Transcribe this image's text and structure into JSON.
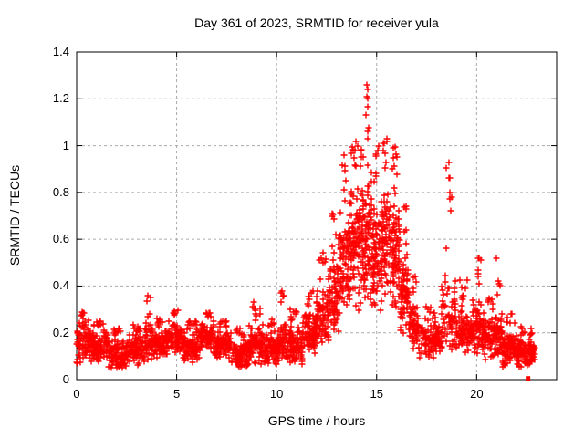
{
  "chart_data": {
    "type": "scatter",
    "title": "Day 361 of 2023, SRMTID for receiver yula",
    "xlabel": "GPS time / hours",
    "ylabel": "SRMTID / TECUs",
    "xlim": [
      0,
      24
    ],
    "ylim": [
      0,
      1.4
    ],
    "xticks": [
      {
        "v": 0,
        "label": "0"
      },
      {
        "v": 5,
        "label": "5"
      },
      {
        "v": 10,
        "label": "10"
      },
      {
        "v": 15,
        "label": "15"
      },
      {
        "v": 20,
        "label": "20"
      }
    ],
    "yticks": [
      {
        "v": 0.0,
        "label": "0"
      },
      {
        "v": 0.2,
        "label": "0.2"
      },
      {
        "v": 0.4,
        "label": "0.4"
      },
      {
        "v": 0.6,
        "label": "0.6"
      },
      {
        "v": 0.8,
        "label": "0.8"
      },
      {
        "v": 1.0,
        "label": "1"
      },
      {
        "v": 1.2,
        "label": "1.2"
      },
      {
        "v": 1.4,
        "label": "1.4"
      }
    ],
    "grid": {
      "show": true,
      "color": "#aaaaaa",
      "dash": "3,3"
    },
    "border_color": "#000000",
    "legend": "none",
    "marker": {
      "shape": "plus",
      "color": "#ff0000",
      "size": 7,
      "stroke_width": 1.4
    },
    "seed": 1361,
    "envelope_segments_format": "[t_start, t_end, n_points, y_min, y_core_max, y_peak]",
    "envelope_segments": [
      [
        0.0,
        0.6,
        70,
        0.06,
        0.26,
        0.29
      ],
      [
        0.6,
        1.6,
        110,
        0.06,
        0.22,
        0.25
      ],
      [
        1.6,
        2.6,
        110,
        0.04,
        0.18,
        0.22
      ],
      [
        2.6,
        3.4,
        90,
        0.06,
        0.2,
        0.24
      ],
      [
        3.4,
        3.8,
        45,
        0.08,
        0.26,
        0.36
      ],
      [
        3.8,
        4.6,
        90,
        0.08,
        0.22,
        0.26
      ],
      [
        4.6,
        5.3,
        80,
        0.1,
        0.26,
        0.3
      ],
      [
        5.3,
        6.2,
        100,
        0.07,
        0.22,
        0.25
      ],
      [
        6.2,
        6.9,
        80,
        0.1,
        0.26,
        0.29
      ],
      [
        6.9,
        7.7,
        90,
        0.08,
        0.22,
        0.25
      ],
      [
        7.7,
        8.6,
        100,
        0.04,
        0.18,
        0.22
      ],
      [
        8.6,
        9.4,
        90,
        0.06,
        0.24,
        0.33
      ],
      [
        9.4,
        10.1,
        80,
        0.05,
        0.22,
        0.26
      ],
      [
        10.1,
        10.45,
        40,
        0.08,
        0.26,
        0.38
      ],
      [
        10.45,
        11.3,
        95,
        0.05,
        0.24,
        0.3
      ],
      [
        11.3,
        12.0,
        85,
        0.1,
        0.3,
        0.38
      ],
      [
        12.0,
        12.6,
        75,
        0.14,
        0.4,
        0.55
      ],
      [
        12.6,
        13.1,
        70,
        0.18,
        0.55,
        0.75
      ],
      [
        13.1,
        13.6,
        75,
        0.22,
        0.75,
        0.97
      ],
      [
        13.6,
        14.1,
        80,
        0.28,
        0.85,
        1.02
      ],
      [
        14.1,
        14.45,
        60,
        0.3,
        0.9,
        1.06
      ],
      [
        14.45,
        14.75,
        55,
        0.32,
        0.95,
        1.27
      ],
      [
        14.75,
        15.25,
        75,
        0.28,
        0.8,
        1.0
      ],
      [
        15.25,
        15.65,
        65,
        0.3,
        0.85,
        1.04
      ],
      [
        15.65,
        16.15,
        85,
        0.28,
        0.8,
        1.0
      ],
      [
        16.15,
        16.6,
        65,
        0.18,
        0.55,
        0.75
      ],
      [
        16.6,
        17.1,
        60,
        0.12,
        0.35,
        0.45
      ],
      [
        17.1,
        18.25,
        110,
        0.08,
        0.25,
        0.32
      ],
      [
        18.25,
        18.95,
        60,
        0.12,
        0.45,
        0.93
      ],
      [
        18.95,
        19.8,
        95,
        0.1,
        0.3,
        0.45
      ],
      [
        19.8,
        20.4,
        70,
        0.1,
        0.35,
        0.53
      ],
      [
        20.4,
        20.95,
        65,
        0.08,
        0.28,
        0.35
      ],
      [
        20.95,
        21.25,
        40,
        0.08,
        0.3,
        0.52
      ],
      [
        21.25,
        22.1,
        90,
        0.05,
        0.22,
        0.28
      ],
      [
        22.1,
        22.55,
        50,
        0.04,
        0.18,
        0.24
      ],
      [
        22.55,
        22.9,
        45,
        0.05,
        0.18,
        0.22
      ]
    ],
    "notable_points": [
      {
        "t": 14.5,
        "y": 1.26
      },
      {
        "t": 14.52,
        "y": 1.21
      },
      {
        "t": 14.48,
        "y": 1.13
      },
      {
        "t": 14.55,
        "y": 1.06
      },
      {
        "t": 14.05,
        "y": 1.0
      },
      {
        "t": 13.9,
        "y": 0.98
      },
      {
        "t": 15.35,
        "y": 1.01
      },
      {
        "t": 15.5,
        "y": 1.03
      },
      {
        "t": 16.0,
        "y": 0.95
      },
      {
        "t": 18.62,
        "y": 0.93
      },
      {
        "t": 18.6,
        "y": 0.86
      },
      {
        "t": 18.65,
        "y": 0.8
      },
      {
        "t": 18.7,
        "y": 0.72
      },
      {
        "t": 20.1,
        "y": 0.52
      },
      {
        "t": 21.0,
        "y": 0.52
      },
      {
        "t": 10.25,
        "y": 0.38
      },
      {
        "t": 3.55,
        "y": 0.36
      },
      {
        "t": 8.85,
        "y": 0.33
      }
    ],
    "outlier_points": [
      {
        "t": 22.57,
        "y": 0.005,
        "shape": "square",
        "size": 5
      }
    ]
  }
}
